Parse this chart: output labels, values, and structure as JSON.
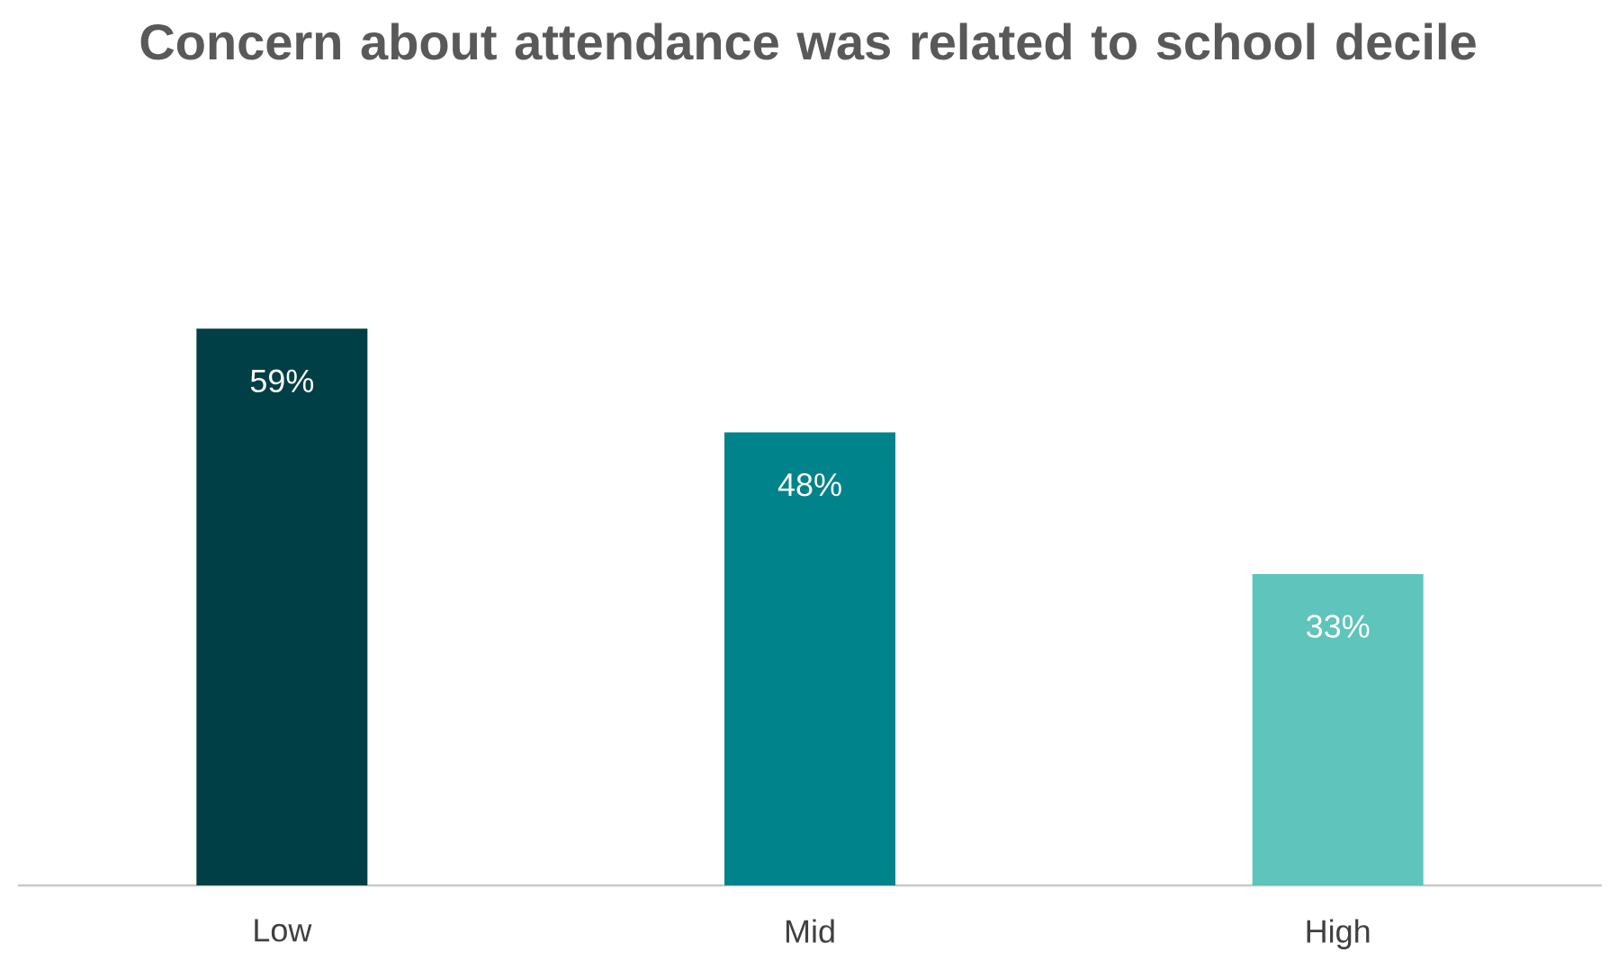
{
  "chart_data": {
    "type": "bar",
    "title": "Concern about attendance was related to school decile",
    "categories": [
      "Low",
      "Mid",
      "High"
    ],
    "values": [
      59,
      48,
      33
    ],
    "colors": [
      "#003f45",
      "#00838a",
      "#5ec4bc"
    ],
    "value_labels": [
      "59%",
      "48%",
      "33%"
    ]
  }
}
